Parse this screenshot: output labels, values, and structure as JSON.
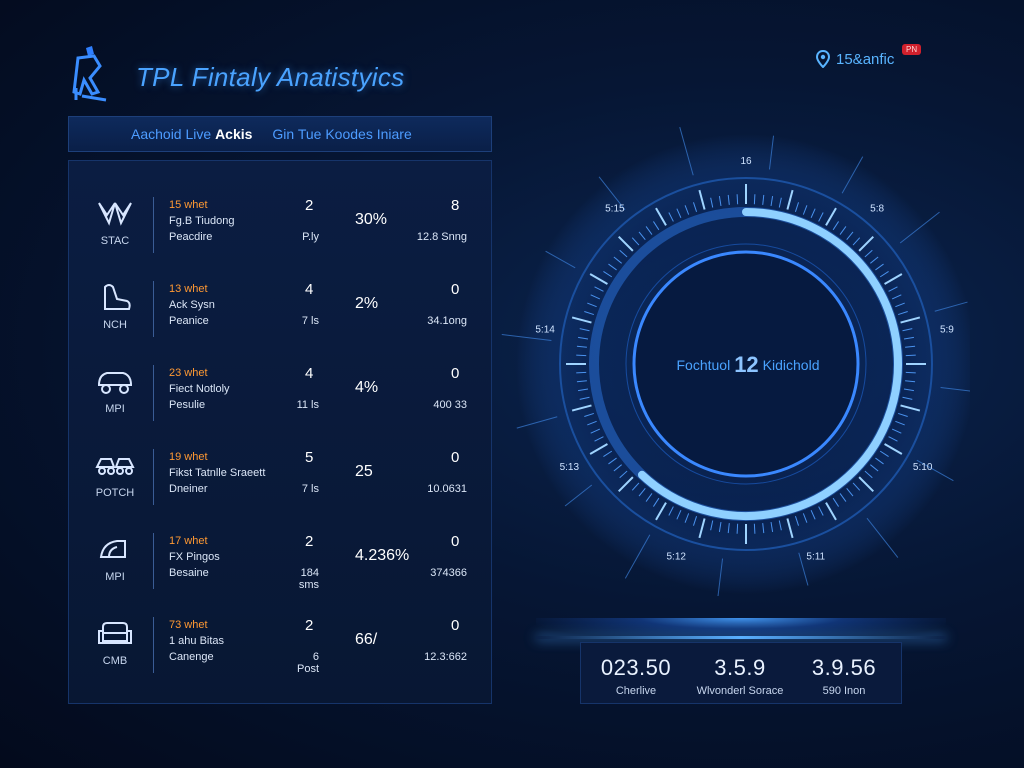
{
  "app": {
    "title": "TPL Fintaly Anatistyics"
  },
  "top_status": {
    "icon": "location-pin-icon",
    "text": "15&anfic",
    "badge": "PN"
  },
  "tabs": [
    {
      "label_prefix": "Aachoid Live ",
      "label_bold": "Ackis"
    },
    {
      "label_prefix": "Gin Tue Koodes Iniare",
      "label_bold": ""
    }
  ],
  "rows": [
    {
      "icon": "wings-icon",
      "code": "STAC",
      "name": "15 whet",
      "desc1": "Fg.B Tiudong",
      "desc2": "Peacdire",
      "n1": "2",
      "n2": "P.ly",
      "pct": "30%",
      "n3": "8",
      "n4": "12.8 Snng"
    },
    {
      "icon": "boot-icon",
      "code": "NCH",
      "name": "13 whet",
      "desc1": "Ack Sysn",
      "desc2": "Peanice",
      "n1": "4",
      "n2": "7 ls",
      "pct": "2%",
      "n3": "0",
      "n4": "34.1ong"
    },
    {
      "icon": "car-icon",
      "code": "MPI",
      "name": "23 whet",
      "desc1": "Fiect Notloly",
      "desc2": "Pesulie",
      "n1": "4",
      "n2": "11 ls",
      "pct": "4%",
      "n3": "0",
      "n4": "400 33"
    },
    {
      "icon": "vehicle-pair-icon",
      "code": "POTCH",
      "name": "19 whet",
      "desc1": "Fikst Tatnlle Sraeett",
      "desc2": "Dneiner",
      "n1": "5",
      "n2": "7 ls",
      "pct": "25",
      "n3": "0",
      "n4": "10.0631"
    },
    {
      "icon": "iron-icon",
      "code": "MPI",
      "name": "17 whet",
      "desc1": "FX Pingos",
      "desc2": "Besaine",
      "n1": "2",
      "n2": "184 sms",
      "pct": "4.236%",
      "n3": "0",
      "n4": "374366"
    },
    {
      "icon": "sofa-icon",
      "code": "CMB",
      "name": "73 whet",
      "desc1": "1 ahu Bitas",
      "desc2": "Canenge",
      "n1": "2",
      "n2": "6 Post",
      "pct": "66/",
      "n3": "0",
      "n4": "12.3:662"
    }
  ],
  "gauge": {
    "label_left": "Fochtuol",
    "number": "12",
    "label_right": "Kidichold",
    "ticks": [
      "16",
      "5:8",
      "5:9",
      "5:10",
      "5:11",
      "5:12",
      "5:13",
      "5:14",
      "5:15"
    ],
    "level": 0.62
  },
  "stats": [
    {
      "value": "023.50",
      "label": "Cherlive"
    },
    {
      "value": "3.5.9",
      "label": "Wlvonderl Sorace"
    },
    {
      "value": "3.9.56",
      "label": "590 Inon"
    }
  ],
  "colors": {
    "accent": "#4aa3ff",
    "highlight": "#ff9933",
    "badge": "#d0202c",
    "panel": "#0b1d42"
  }
}
